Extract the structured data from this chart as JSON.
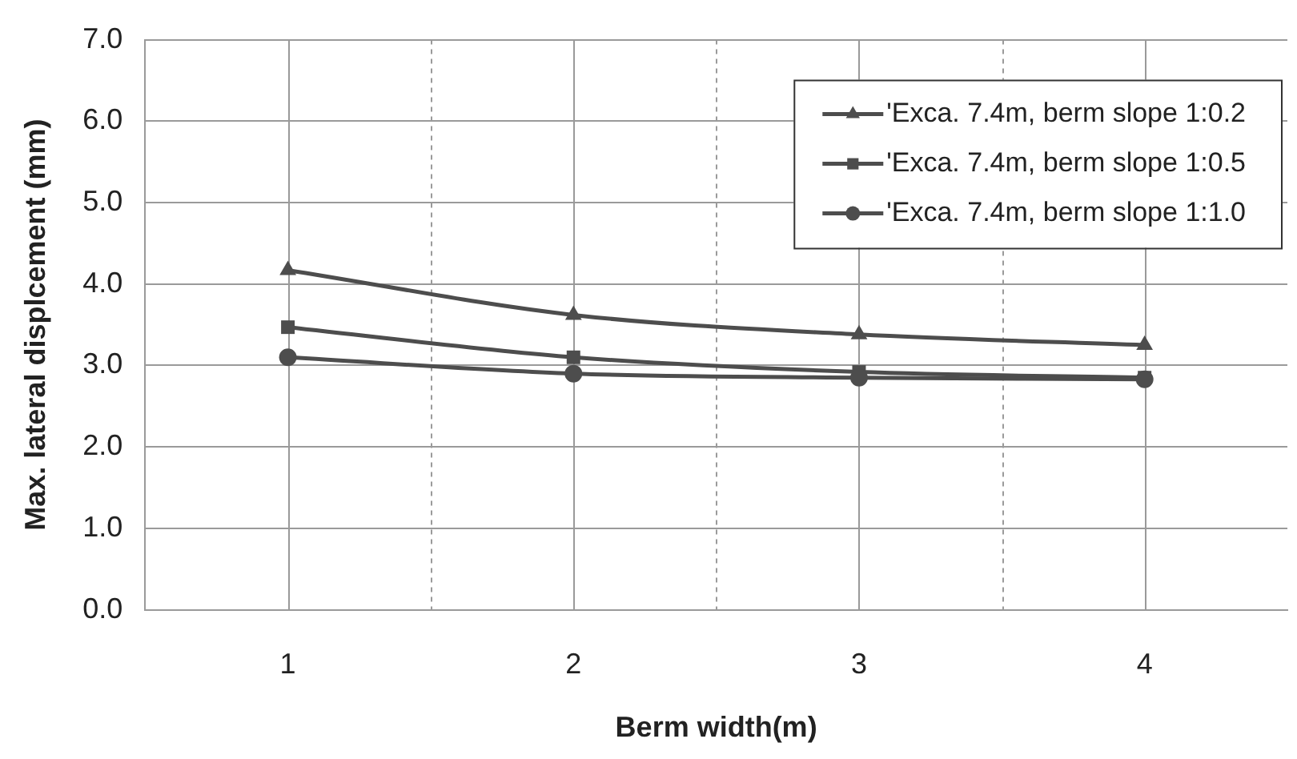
{
  "chart_data": {
    "type": "line",
    "xlabel": "Berm width(m)",
    "ylabel": "Max. lateral displcement (mm)",
    "categories": [
      "1",
      "2",
      "3",
      "4"
    ],
    "series": [
      {
        "name": "'Exca. 7.4m, berm slope 1:0.2",
        "color": "#4d4d4d",
        "marker": "triangle",
        "values": [
          4.17,
          3.62,
          3.38,
          3.25
        ]
      },
      {
        "name": "'Exca. 7.4m, berm slope 1:0.5",
        "color": "#4d4d4d",
        "marker": "square",
        "values": [
          3.47,
          3.1,
          2.92,
          2.85
        ]
      },
      {
        "name": "'Exca. 7.4m, berm slope 1:1.0",
        "color": "#4d4d4d",
        "marker": "circle",
        "values": [
          3.1,
          2.9,
          2.85,
          2.83
        ]
      }
    ],
    "ylim": [
      0,
      7
    ],
    "yticks": [
      {
        "value": 0,
        "label": "0.0"
      },
      {
        "value": 1,
        "label": "1.0"
      },
      {
        "value": 2,
        "label": "2.0"
      },
      {
        "value": 3,
        "label": "3.0"
      },
      {
        "value": 4,
        "label": "4.0"
      },
      {
        "value": 5,
        "label": "5.0"
      },
      {
        "value": 6,
        "label": "6.0"
      },
      {
        "value": 7,
        "label": "7.0"
      }
    ],
    "grid": true,
    "legend": "top right",
    "line_style": "solid"
  }
}
